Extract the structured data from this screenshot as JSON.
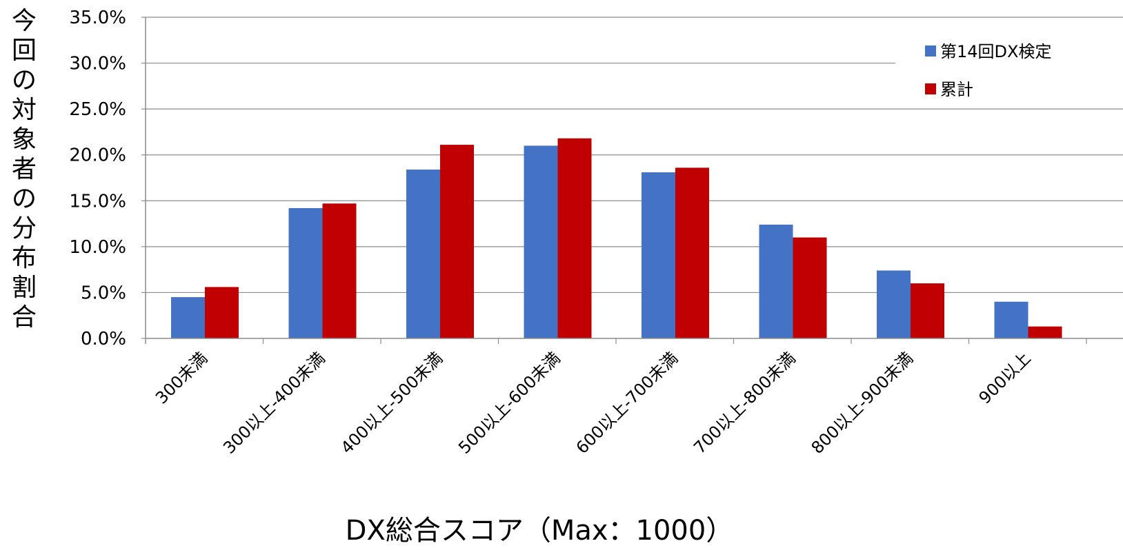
{
  "chart_data": {
    "type": "bar",
    "title": "",
    "xlabel": "DX総合スコア（Max：1000）",
    "ylabel": "今回の対象者の分布割合",
    "ylim": [
      0,
      35
    ],
    "y_tick_values": [
      0,
      5,
      10,
      15,
      20,
      25,
      30,
      35
    ],
    "y_tick_labels": [
      "0.0%",
      "5.0%",
      "10.0%",
      "15.0%",
      "20.0%",
      "25.0%",
      "30.0%",
      "35.0%"
    ],
    "grid": true,
    "legend_position": "top-right",
    "categories": [
      "300未満",
      "300以上-400未満",
      "400以上-500未満",
      "500以上-600未満",
      "600以上-700未満",
      "700以上-800未満",
      "800以上-900未満",
      "900以上"
    ],
    "series": [
      {
        "name": "第14回DX検定",
        "color": "#4472C4",
        "values": [
          4.5,
          14.2,
          18.4,
          21.0,
          18.1,
          12.4,
          7.4,
          4.0
        ]
      },
      {
        "name": "累計",
        "color": "#C00000",
        "values": [
          5.6,
          14.7,
          21.1,
          21.8,
          18.6,
          11.0,
          6.0,
          1.3
        ]
      }
    ]
  }
}
